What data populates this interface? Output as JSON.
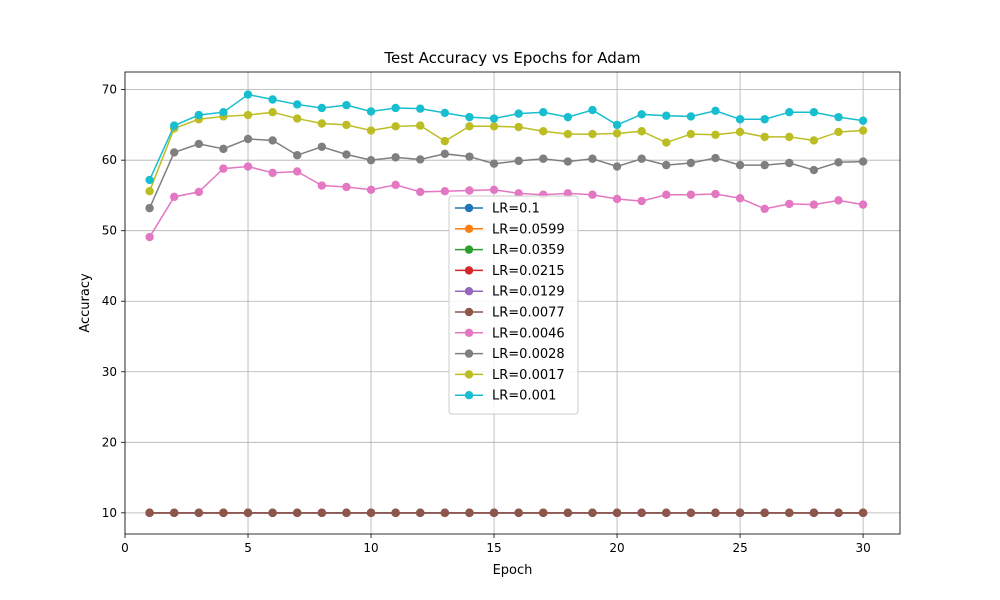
{
  "chart_data": {
    "type": "line",
    "title": "Test Accuracy vs Epochs for Adam",
    "xlabel": "Epoch",
    "ylabel": "Accuracy",
    "xlim": [
      0,
      31.5
    ],
    "ylim": [
      7,
      72.5
    ],
    "xticks": [
      0,
      5,
      10,
      15,
      20,
      25,
      30
    ],
    "yticks": [
      10,
      20,
      30,
      40,
      50,
      60,
      70
    ],
    "grid": true,
    "legend_placement": "center",
    "x": [
      1,
      2,
      3,
      4,
      5,
      6,
      7,
      8,
      9,
      10,
      11,
      12,
      13,
      14,
      15,
      16,
      17,
      18,
      19,
      20,
      21,
      22,
      23,
      24,
      25,
      26,
      27,
      28,
      29,
      30
    ],
    "series": [
      {
        "name": "LR=0.1",
        "color": "#1f77b4",
        "values": [
          10,
          10,
          10,
          10,
          10,
          10,
          10,
          10,
          10,
          10,
          10,
          10,
          10,
          10,
          10,
          10,
          10,
          10,
          10,
          10,
          10,
          10,
          10,
          10,
          10,
          10,
          10,
          10,
          10,
          10
        ]
      },
      {
        "name": "LR=0.0599",
        "color": "#ff7f0e",
        "values": [
          10,
          10,
          10,
          10,
          10,
          10,
          10,
          10,
          10,
          10,
          10,
          10,
          10,
          10,
          10,
          10,
          10,
          10,
          10,
          10,
          10,
          10,
          10,
          10,
          10,
          10,
          10,
          10,
          10,
          10
        ]
      },
      {
        "name": "LR=0.0359",
        "color": "#2ca02c",
        "values": [
          10,
          10,
          10,
          10,
          10,
          10,
          10,
          10,
          10,
          10,
          10,
          10,
          10,
          10,
          10,
          10,
          10,
          10,
          10,
          10,
          10,
          10,
          10,
          10,
          10,
          10,
          10,
          10,
          10,
          10
        ]
      },
      {
        "name": "LR=0.0215",
        "color": "#d62728",
        "values": [
          10,
          10,
          10,
          10,
          10,
          10,
          10,
          10,
          10,
          10,
          10,
          10,
          10,
          10,
          10,
          10,
          10,
          10,
          10,
          10,
          10,
          10,
          10,
          10,
          10,
          10,
          10,
          10,
          10,
          10
        ]
      },
      {
        "name": "LR=0.0129",
        "color": "#9467bd",
        "values": [
          10,
          10,
          10,
          10,
          10,
          10,
          10,
          10,
          10,
          10,
          10,
          10,
          10,
          10,
          10,
          10,
          10,
          10,
          10,
          10,
          10,
          10,
          10,
          10,
          10,
          10,
          10,
          10,
          10,
          10
        ]
      },
      {
        "name": "LR=0.0077",
        "color": "#8c564b",
        "values": [
          10,
          10,
          10,
          10,
          10,
          10,
          10,
          10,
          10,
          10,
          10,
          10,
          10,
          10,
          10,
          10,
          10,
          10,
          10,
          10,
          10,
          10,
          10,
          10,
          10,
          10,
          10,
          10,
          10,
          10
        ]
      },
      {
        "name": "LR=0.0046",
        "color": "#e377c2",
        "values": [
          49.1,
          54.8,
          55.5,
          58.8,
          59.1,
          58.2,
          58.4,
          56.4,
          56.2,
          55.8,
          56.5,
          55.5,
          55.6,
          55.7,
          55.8,
          55.3,
          55.1,
          55.3,
          55.1,
          54.5,
          54.2,
          55.1,
          55.1,
          55.2,
          54.6,
          53.1,
          53.8,
          53.7,
          54.3,
          53.7
        ]
      },
      {
        "name": "LR=0.0028",
        "color": "#7f7f7f",
        "values": [
          53.2,
          61.1,
          62.3,
          61.6,
          63.0,
          62.8,
          60.7,
          61.9,
          60.8,
          60.0,
          60.4,
          60.1,
          60.9,
          60.5,
          59.5,
          59.9,
          60.2,
          59.8,
          60.2,
          59.1,
          60.2,
          59.3,
          59.6,
          60.3,
          59.3,
          59.3,
          59.6,
          58.6,
          59.7,
          59.8
        ]
      },
      {
        "name": "LR=0.0017",
        "color": "#bcbd22",
        "values": [
          55.6,
          64.5,
          65.8,
          66.2,
          66.4,
          66.8,
          65.9,
          65.2,
          65.0,
          64.2,
          64.8,
          64.9,
          62.7,
          64.8,
          64.8,
          64.7,
          64.1,
          63.7,
          63.7,
          63.8,
          64.1,
          62.5,
          63.7,
          63.6,
          64.0,
          63.3,
          63.3,
          62.8,
          64.0,
          64.2
        ]
      },
      {
        "name": "LR=0.001",
        "color": "#17becf",
        "values": [
          57.2,
          64.9,
          66.4,
          66.8,
          69.3,
          68.6,
          67.9,
          67.4,
          67.8,
          66.9,
          67.4,
          67.3,
          66.7,
          66.1,
          65.9,
          66.6,
          66.8,
          66.1,
          67.1,
          65.0,
          66.5,
          66.3,
          66.2,
          67.0,
          65.8,
          65.8,
          66.8,
          66.8,
          66.1,
          65.6
        ]
      }
    ]
  }
}
